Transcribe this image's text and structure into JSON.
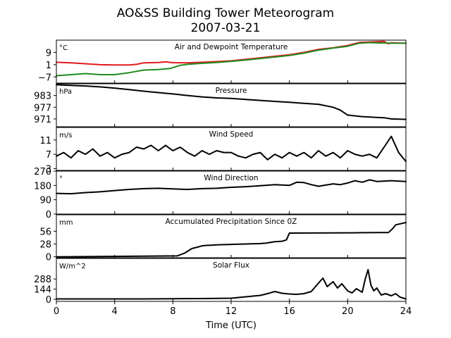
{
  "chart_data": {
    "type": "line",
    "title": "AO&SS Building Tower Meteorogram",
    "subtitle": "2007-03-21",
    "xlabel": "Time (UTC)",
    "xlim": [
      0,
      24
    ],
    "xticks": [
      "0",
      "4",
      "8",
      "12",
      "16",
      "20",
      "24"
    ],
    "grid": false,
    "panels": [
      {
        "title": "Air and Dewpoint Temperature",
        "unit": "°C",
        "ylim": [
          -11,
          17
        ],
        "yticks": [
          "−7",
          "1",
          "9"
        ],
        "series": [
          {
            "color": "#e41a1c",
            "x": [
              0,
              1,
              2,
              3,
              4,
              5,
              5.5,
              6,
              7,
              7.5,
              8,
              9,
              10,
              11,
              12,
              13,
              14,
              15,
              16,
              17,
              18,
              19,
              20,
              20.8,
              21.5,
              22,
              22.5,
              22.8,
              23,
              24
            ],
            "y": [
              2.6,
              2.2,
              1.6,
              1.0,
              0.8,
              0.8,
              1.2,
              2.2,
              2.4,
              2.8,
              2.3,
              2.2,
              2.6,
              3.0,
              3.5,
              4.5,
              5.5,
              6.5,
              7.5,
              9.0,
              11.0,
              12.0,
              13.5,
              15.5,
              15.8,
              16.0,
              16.2,
              14.6,
              15.3,
              15.0
            ]
          },
          {
            "color": "#228b22",
            "x": [
              0,
              1,
              2,
              3,
              4,
              5,
              6,
              7,
              7.8,
              8.5,
              9,
              10,
              11,
              12,
              13,
              14,
              15,
              16,
              17,
              18,
              19,
              20,
              20.8,
              21.5,
              22,
              23,
              24
            ],
            "y": [
              -6.2,
              -5.5,
              -4.8,
              -5.5,
              -5.5,
              -4.2,
              -2.5,
              -2.2,
              -1.5,
              0.6,
              1.2,
              1.9,
              2.4,
              3.2,
              4.0,
              5.0,
              6.0,
              7.0,
              8.5,
              10.5,
              11.8,
              13.0,
              15.0,
              15.4,
              15.2,
              15.0,
              15.0
            ]
          }
        ]
      },
      {
        "title": "Pressure",
        "unit": "hPa",
        "ylim": [
          967,
          989
        ],
        "yticks": [
          "971",
          "977",
          "983"
        ],
        "series": [
          {
            "color": "#000000",
            "x": [
              0,
              1,
              2,
              3,
              4,
              5,
              6,
              7,
              8,
              9,
              10,
              11,
              12,
              13,
              14,
              15,
              16,
              17,
              18,
              19,
              19.5,
              20,
              21,
              22,
              22.5,
              23,
              24
            ],
            "y": [
              988.5,
              988.2,
              987.9,
              987.4,
              986.8,
              986.0,
              985.2,
              984.5,
              983.8,
              983.0,
              982.3,
              981.8,
              981.5,
              981.0,
              980.5,
              980.0,
              979.5,
              979.0,
              978.5,
              977.0,
              975.5,
              973.0,
              972.2,
              971.8,
              971.6,
              971.0,
              970.8
            ]
          }
        ]
      },
      {
        "title": "Wind Speed",
        "unit": "m/s",
        "ylim": [
          2.5,
          14.5
        ],
        "yticks": [
          "3",
          "7",
          "11"
        ],
        "series": [
          {
            "color": "#000000",
            "x": [
              0,
              0.5,
              1,
              1.5,
              2,
              2.5,
              3,
              3.5,
              4,
              4.5,
              5,
              5.5,
              6,
              6.5,
              7,
              7.5,
              8,
              8.5,
              9,
              9.5,
              10,
              10.5,
              11,
              11.5,
              12,
              12.5,
              13,
              13.5,
              14,
              14.5,
              15,
              15.5,
              16,
              16.5,
              17,
              17.5,
              18,
              18.5,
              19,
              19.5,
              20,
              20.5,
              21,
              21.5,
              22,
              22.5,
              23,
              23.5,
              24
            ],
            "y": [
              6.5,
              7.5,
              6.0,
              8.0,
              7.0,
              8.5,
              6.5,
              7.5,
              6.0,
              7.0,
              7.5,
              9.0,
              8.5,
              9.5,
              8.0,
              9.5,
              8.0,
              9.0,
              7.5,
              6.5,
              8.0,
              7.0,
              8.0,
              7.5,
              7.5,
              6.5,
              6.0,
              7.0,
              7.5,
              5.5,
              7.0,
              6.0,
              7.5,
              6.5,
              7.5,
              6.0,
              8.0,
              6.5,
              7.5,
              6.0,
              8.0,
              7.0,
              6.5,
              7.0,
              6.0,
              9.0,
              12.0,
              7.5,
              5.0
            ]
          }
        ]
      },
      {
        "title": "Wind Direction",
        "unit": "°",
        "ylim": [
          0,
          270
        ],
        "yticks": [
          "0",
          "90",
          "180",
          "270"
        ],
        "series": [
          {
            "color": "#000000",
            "x": [
              0,
              1,
              2,
              3,
              4,
              5,
              6,
              7,
              8,
              9,
              10,
              11,
              12,
              13,
              14,
              15,
              16,
              16.5,
              17,
              17.5,
              18,
              19,
              19.5,
              20,
              20.5,
              21,
              21.5,
              22,
              23,
              24
            ],
            "y": [
              130,
              128,
              135,
              140,
              148,
              155,
              160,
              162,
              158,
              155,
              160,
              162,
              168,
              172,
              178,
              185,
              180,
              200,
              198,
              185,
              175,
              190,
              185,
              195,
              210,
              200,
              215,
              205,
              210,
              205
            ]
          }
        ]
      },
      {
        "title": "Accumulated Precipitation Since 0Z",
        "unit": "mm",
        "ylim": [
          -2,
          92
        ],
        "yticks": [
          "0",
          "28",
          "56"
        ],
        "series": [
          {
            "color": "#000000",
            "x": [
              0,
              8.3,
              8.8,
              9.3,
              9.8,
              10.0,
              10.3,
              10.6,
              11.0,
              11.3,
              11.8,
              12.3,
              13.0,
              14.0,
              14.4,
              15.0,
              15.5,
              15.8,
              16.0,
              20.3,
              22.0,
              22.8,
              23.1,
              23.3,
              24
            ],
            "y": [
              0,
              2,
              8,
              18,
              22,
              24,
              25,
              25.5,
              26,
              26.5,
              27,
              27.5,
              28,
              29,
              30,
              33,
              34,
              37,
              52,
              52.5,
              53,
              53,
              62,
              70,
              75
            ]
          }
        ]
      },
      {
        "title": "Solar Flux",
        "unit": "W/m^2",
        "ylim": [
          -30,
          580
        ],
        "yticks": [
          "0",
          "144",
          "288"
        ],
        "series": [
          {
            "color": "#000000",
            "x": [
              0,
              2,
              4,
              6,
              8,
              10,
              12,
              13,
              14,
              14.5,
              15,
              15.5,
              16,
              16.5,
              17,
              17.5,
              18,
              18.3,
              18.6,
              19,
              19.3,
              19.6,
              20,
              20.3,
              20.6,
              21,
              21.2,
              21.4,
              21.6,
              21.8,
              22,
              22.3,
              22.6,
              23,
              23.3,
              23.6,
              24
            ],
            "y": [
              5,
              5,
              5,
              5,
              8,
              10,
              15,
              35,
              55,
              80,
              110,
              85,
              75,
              70,
              80,
              110,
              230,
              300,
              180,
              250,
              160,
              220,
              120,
              90,
              150,
              100,
              280,
              420,
              200,
              120,
              160,
              60,
              80,
              50,
              80,
              30,
              5
            ]
          }
        ]
      }
    ]
  }
}
